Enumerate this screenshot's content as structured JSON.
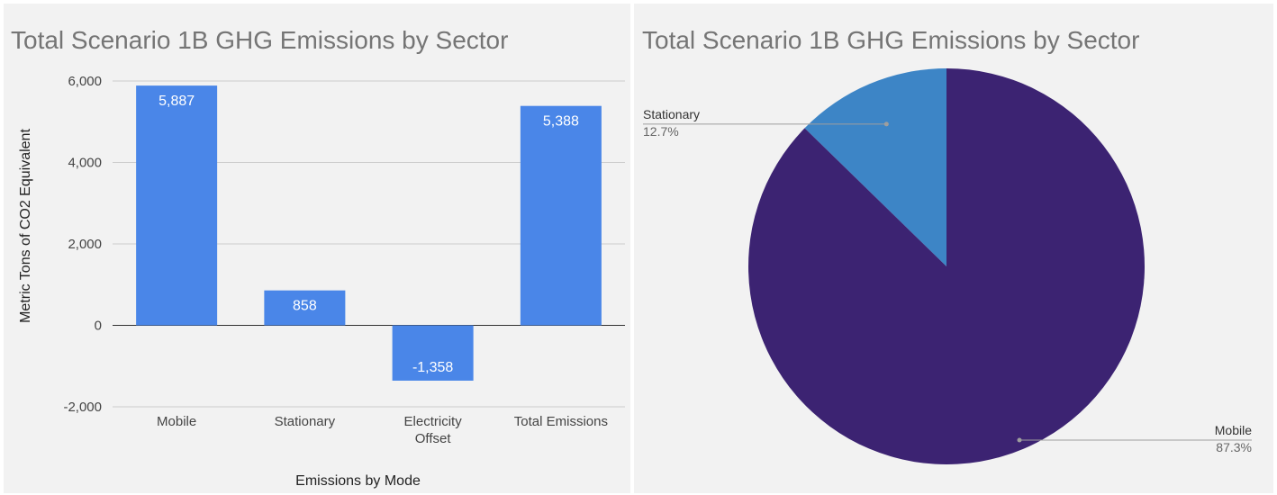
{
  "chart_data": [
    {
      "type": "bar",
      "title": "Total Scenario 1B GHG Emissions by Sector",
      "xlabel": "Emissions by Mode",
      "ylabel": "Metric Tons of CO2 Equivalent",
      "categories": [
        [
          "Mobile"
        ],
        [
          "Stationary"
        ],
        [
          "Electricity",
          "Offset"
        ],
        [
          "Total Emissions"
        ]
      ],
      "values": [
        5887,
        858,
        -1358,
        5388
      ],
      "data_labels": [
        "5,887",
        "858",
        "-1,358",
        "5,388"
      ],
      "ylim": [
        -2000,
        6000
      ],
      "yticks": [
        -2000,
        0,
        2000,
        4000,
        6000
      ],
      "ytick_labels": [
        "-2,000",
        "0",
        "2,000",
        "4,000",
        "6,000"
      ],
      "grid": true,
      "color": "#4a86e8"
    },
    {
      "type": "pie",
      "title": "Total Scenario 1B GHG Emissions by Sector",
      "slices": [
        {
          "label": "Stationary",
          "value": 12.7,
          "percent_label": "12.7%",
          "color": "#3d85c6"
        },
        {
          "label": "Mobile",
          "value": 87.3,
          "percent_label": "87.3%",
          "color": "#3c2372"
        }
      ]
    }
  ]
}
